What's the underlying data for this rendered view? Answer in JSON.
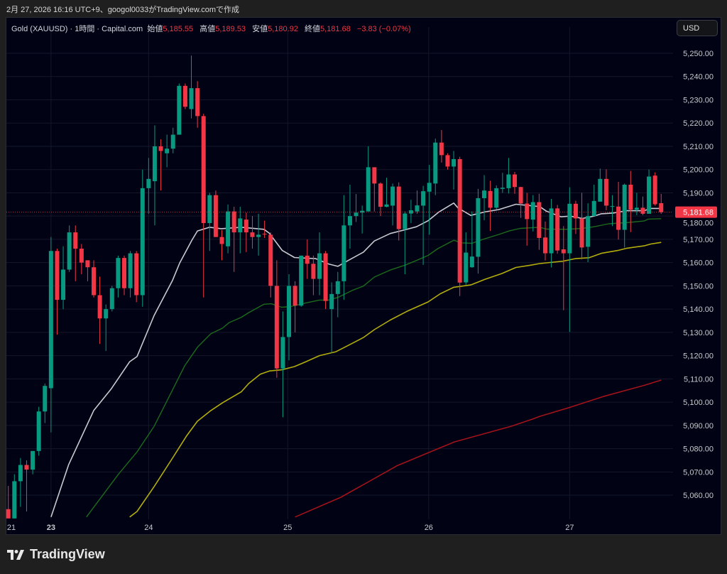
{
  "caption": "2月 27, 2026 16:16 UTC+9、googol0033がTradingView.comで作成",
  "legend": {
    "symbol": "Gold (XAUUSD) · 1時間 · Capital.com",
    "open_label": "始値",
    "open": "5,185.55",
    "high_label": "高値",
    "high": "5,189.53",
    "low_label": "安値",
    "low": "5,180.92",
    "close_label": "終値",
    "close": "5,181.68",
    "change": "−3.83 (−0.07%)"
  },
  "currency_button": "USD",
  "brand": "TradingView",
  "colors": {
    "up": "#089981",
    "down": "#f23645",
    "ma_fast": "#c9c9d1",
    "ma_mid": "#1c6a1c",
    "ma_slow": "#b3ad0c",
    "ma_long": "#a3121a",
    "last_price": "#f23645"
  },
  "chart_data": {
    "type": "candlestick",
    "title": "Gold (XAUUSD) · 1時間 · Capital.com",
    "ylim": [
      5050,
      5250
    ],
    "y_ticks": [
      "5,250.00",
      "5,240.00",
      "5,230.00",
      "5,220.00",
      "5,210.00",
      "5,200.00",
      "5,190.00",
      "5,180.00",
      "5,170.00",
      "5,160.00",
      "5,150.00",
      "5,140.00",
      "5,130.00",
      "5,120.00",
      "5,110.00",
      "5,100.00",
      "5,090.00",
      "5,080.00",
      "5,070.00",
      "5,060.00"
    ],
    "y_tick_values": [
      5250,
      5240,
      5230,
      5220,
      5210,
      5200,
      5190,
      5180,
      5170,
      5160,
      5150,
      5140,
      5130,
      5120,
      5110,
      5100,
      5090,
      5080,
      5070,
      5060
    ],
    "x_labels": [
      {
        "label": "21",
        "index": 0,
        "bold": false
      },
      {
        "label": "23",
        "index": 7,
        "bold": true
      },
      {
        "label": "24",
        "index": 23,
        "bold": false
      },
      {
        "label": "25",
        "index": 45.8,
        "bold": false
      },
      {
        "label": "26",
        "index": 68.9,
        "bold": false
      },
      {
        "label": "27",
        "index": 92,
        "bold": false
      }
    ],
    "last_price": 5181.68,
    "last_price_label": "5,181.68",
    "ohlc": [
      [
        5054,
        5064,
        5050,
        5050
      ],
      [
        5050,
        5069,
        5050,
        5066
      ],
      [
        5066,
        5076,
        5055,
        5073
      ],
      [
        5073,
        5075,
        5053,
        5071
      ],
      [
        5071,
        5079,
        5069,
        5079
      ],
      [
        5079,
        5098,
        5077,
        5096
      ],
      [
        5096,
        5108,
        5091,
        5107
      ],
      [
        5106,
        5171,
        5087,
        5165
      ],
      [
        5165,
        5166,
        5129,
        5144
      ],
      [
        5144,
        5167,
        5140,
        5157
      ],
      [
        5157,
        5176,
        5156,
        5173
      ],
      [
        5173,
        5176,
        5152,
        5166
      ],
      [
        5166,
        5168,
        5155,
        5160
      ],
      [
        5161,
        5161,
        5152,
        5158
      ],
      [
        5158,
        5161,
        5145,
        5146
      ],
      [
        5146,
        5154,
        5125,
        5136
      ],
      [
        5136,
        5142,
        5122,
        5140
      ],
      [
        5140,
        5150,
        5139,
        5149
      ],
      [
        5149,
        5163,
        5145,
        5162
      ],
      [
        5162,
        5163,
        5146,
        5149
      ],
      [
        5149,
        5165,
        5145,
        5164
      ],
      [
        5164,
        5165,
        5143,
        5146
      ],
      [
        5146,
        5200,
        5141,
        5192
      ],
      [
        5192,
        5205,
        5181,
        5196
      ],
      [
        5195,
        5219,
        5176,
        5210
      ],
      [
        5210,
        5213,
        5191,
        5208
      ],
      [
        5207,
        5215,
        5201,
        5209
      ],
      [
        5209,
        5218,
        5207,
        5215
      ],
      [
        5215,
        5237,
        5215,
        5236
      ],
      [
        5236,
        5237,
        5226,
        5227
      ],
      [
        5226,
        5249,
        5222,
        5235
      ],
      [
        5235,
        5238,
        5218,
        5223
      ],
      [
        5223,
        5224,
        5145,
        5177
      ],
      [
        5177,
        5190,
        5165,
        5189
      ],
      [
        5189,
        5191,
        5171,
        5171
      ],
      [
        5171,
        5174,
        5161,
        5168
      ],
      [
        5167,
        5185,
        5164,
        5182
      ],
      [
        5182,
        5184,
        5156,
        5173
      ],
      [
        5173,
        5184,
        5164,
        5179
      ],
      [
        5178.5,
        5181.5,
        5164.5,
        5173
      ],
      [
        5173,
        5180,
        5166,
        5171
      ],
      [
        5171,
        5181,
        5163,
        5172
      ],
      [
        5172.4,
        5178,
        5170.6,
        5172.1
      ],
      [
        5172,
        5173,
        5145,
        5150
      ],
      [
        5150,
        5161,
        5110.5,
        5114.5
      ],
      [
        5114.5,
        5139,
        5093.5,
        5128
      ],
      [
        5128,
        5155,
        5118,
        5150
      ],
      [
        5150,
        5152,
        5130,
        5141.5
      ],
      [
        5141.5,
        5163,
        5141,
        5163
      ],
      [
        5163,
        5170,
        5153,
        5159.5
      ],
      [
        5159.5,
        5163,
        5146,
        5153
      ],
      [
        5153,
        5173,
        5146,
        5164
      ],
      [
        5164,
        5165,
        5140,
        5143.5
      ],
      [
        5140,
        5151.5,
        5121,
        5146.5
      ],
      [
        5146.5,
        5156,
        5136.5,
        5152
      ],
      [
        5152,
        5189,
        5144,
        5176
      ],
      [
        5176,
        5193.5,
        5166,
        5180
      ],
      [
        5180,
        5189.5,
        5177.5,
        5181.5
      ],
      [
        5181.5,
        5184.5,
        5172.5,
        5182.3
      ],
      [
        5182,
        5210,
        5182,
        5201
      ],
      [
        5201,
        5201,
        5182,
        5194
      ],
      [
        5194,
        5194.5,
        5180,
        5184
      ],
      [
        5184,
        5196.5,
        5183.8,
        5185
      ],
      [
        5184.5,
        5194,
        5176,
        5192.7
      ],
      [
        5192.7,
        5194.5,
        5169.5,
        5174.4
      ],
      [
        5174.4,
        5182,
        5155,
        5181.1
      ],
      [
        5181.1,
        5187,
        5177,
        5182.5
      ],
      [
        5182,
        5191,
        5181,
        5184.6
      ],
      [
        5184.5,
        5193,
        5159,
        5190.7
      ],
      [
        5190.5,
        5202,
        5172,
        5194.3
      ],
      [
        5194,
        5213.3,
        5189,
        5211.6
      ],
      [
        5211.6,
        5217,
        5203,
        5206.2
      ],
      [
        5206.2,
        5207,
        5200,
        5201.3
      ],
      [
        5201.3,
        5208,
        5191.4,
        5204.5
      ],
      [
        5204.5,
        5205.5,
        5145.6,
        5151.4
      ],
      [
        5151.5,
        5173,
        5150.5,
        5164.3
      ],
      [
        5158,
        5182,
        5157.8,
        5162.6
      ],
      [
        5162.5,
        5191.7,
        5155.3,
        5187.7
      ],
      [
        5187.7,
        5197.6,
        5178.2,
        5191
      ],
      [
        5190.8,
        5195.2,
        5173.6,
        5183.6
      ],
      [
        5183.6,
        5193.2,
        5182.8,
        5192
      ],
      [
        5191.7,
        5198.6,
        5190,
        5192.2
      ],
      [
        5192,
        5205,
        5189.7,
        5197.9
      ],
      [
        5197.9,
        5199,
        5189.6,
        5192.5
      ],
      [
        5192.5,
        5192.6,
        5179.2,
        5185.4
      ],
      [
        5185.4,
        5190,
        5167.3,
        5178.7
      ],
      [
        5178.5,
        5189,
        5173.4,
        5186
      ],
      [
        5186,
        5189.6,
        5165.5,
        5170.6
      ],
      [
        5170.8,
        5177.7,
        5160.9,
        5164
      ],
      [
        5164,
        5187.4,
        5157.9,
        5183.3
      ],
      [
        5183.3,
        5184.8,
        5163.8,
        5165.2
      ],
      [
        5165.7,
        5175.7,
        5139.5,
        5164
      ],
      [
        5164,
        5192.4,
        5130.2,
        5185.3
      ],
      [
        5185.3,
        5186.6,
        5172.3,
        5179
      ],
      [
        5179,
        5190,
        5161.4,
        5166.5
      ],
      [
        5166.8,
        5185.5,
        5160.2,
        5180
      ],
      [
        5180,
        5193.5,
        5180,
        5186.5
      ],
      [
        5186.2,
        5200.4,
        5186.2,
        5196
      ],
      [
        5196,
        5200.1,
        5182.5,
        5184.5
      ],
      [
        5184.1,
        5189,
        5175.7,
        5184.3
      ],
      [
        5184.1,
        5194.7,
        5169.9,
        5174.1
      ],
      [
        5174.1,
        5194,
        5166.5,
        5193.5
      ],
      [
        5193.5,
        5199.4,
        5173.1,
        5182.8
      ],
      [
        5182.8,
        5190,
        5180.4,
        5183.6
      ],
      [
        5183.6,
        5188.4,
        5180.4,
        5181
      ],
      [
        5181,
        5200,
        5181,
        5197
      ],
      [
        5197.4,
        5198.8,
        5184.5,
        5185.1
      ],
      [
        5185.55,
        5189.53,
        5180.92,
        5181.68
      ]
    ],
    "moving_averages": [
      {
        "name": "ma_fast",
        "points": [
          [
            7,
            5050.6
          ],
          [
            9.9,
            5073.2
          ],
          [
            14,
            5096.4
          ],
          [
            16.9,
            5105.8
          ],
          [
            19.9,
            5117.4
          ],
          [
            21.1,
            5119.6
          ],
          [
            23.9,
            5137.3
          ],
          [
            26.9,
            5152.3
          ],
          [
            28.1,
            5159.9
          ],
          [
            30.1,
            5169.7
          ],
          [
            31,
            5173.6
          ],
          [
            33,
            5175.2
          ],
          [
            34.9,
            5174.6
          ],
          [
            38.2,
            5175.2
          ],
          [
            41.9,
            5174.3
          ],
          [
            42.8,
            5172.6
          ],
          [
            44.9,
            5165.2
          ],
          [
            46.9,
            5162.2
          ],
          [
            50.4,
            5161.7
          ],
          [
            52.5,
            5159.4
          ],
          [
            54,
            5158.4
          ],
          [
            55.7,
            5160.9
          ],
          [
            58.2,
            5164.5
          ],
          [
            60,
            5169.3
          ],
          [
            62.6,
            5172.5
          ],
          [
            65,
            5174.1
          ],
          [
            66.9,
            5175.4
          ],
          [
            68.8,
            5178
          ],
          [
            70.6,
            5181.8
          ],
          [
            73,
            5185.6
          ],
          [
            73.7,
            5183.5
          ],
          [
            75.8,
            5180.3
          ],
          [
            78.1,
            5181.8
          ],
          [
            80.4,
            5182.8
          ],
          [
            83.2,
            5185.1
          ],
          [
            87.1,
            5184.1
          ],
          [
            88.2,
            5182.1
          ],
          [
            90.6,
            5179.7
          ],
          [
            92.1,
            5180
          ],
          [
            94.1,
            5179
          ],
          [
            96,
            5180
          ],
          [
            97.2,
            5181
          ],
          [
            99.1,
            5181.3
          ],
          [
            101.4,
            5182.3
          ],
          [
            104.2,
            5182.3
          ],
          [
            105.3,
            5183.3
          ],
          [
            107,
            5183.3
          ]
        ]
      },
      {
        "name": "ma_mid",
        "points": [
          [
            12.8,
            5050.6
          ],
          [
            14,
            5054.8
          ],
          [
            18.1,
            5069.2
          ],
          [
            21.1,
            5078.6
          ],
          [
            23.9,
            5089.6
          ],
          [
            26.9,
            5105.2
          ],
          [
            28.9,
            5115.6
          ],
          [
            31,
            5123.6
          ],
          [
            33.2,
            5129.4
          ],
          [
            35.1,
            5131.8
          ],
          [
            36.2,
            5134.2
          ],
          [
            38.2,
            5136.5
          ],
          [
            39.4,
            5138.5
          ],
          [
            41.9,
            5142.1
          ],
          [
            43.1,
            5142.3
          ],
          [
            44.8,
            5140.8
          ],
          [
            46.3,
            5141.1
          ],
          [
            48.7,
            5142.6
          ],
          [
            51,
            5143.9
          ],
          [
            52.5,
            5143.9
          ],
          [
            54.1,
            5145.1
          ],
          [
            56.5,
            5148.2
          ],
          [
            58.2,
            5149.9
          ],
          [
            60,
            5153.8
          ],
          [
            62.6,
            5156.8
          ],
          [
            65,
            5158.9
          ],
          [
            66.9,
            5160.9
          ],
          [
            68.8,
            5163.1
          ],
          [
            70.4,
            5166
          ],
          [
            73,
            5169.6
          ],
          [
            74.3,
            5168.5
          ],
          [
            76,
            5168.3
          ],
          [
            77.8,
            5170
          ],
          [
            80.4,
            5172.1
          ],
          [
            82.1,
            5173.6
          ],
          [
            83.9,
            5174.7
          ],
          [
            87.1,
            5175.2
          ],
          [
            88.2,
            5174.4
          ],
          [
            91.4,
            5174.3
          ],
          [
            94.1,
            5174.7
          ],
          [
            96,
            5175.4
          ],
          [
            98.4,
            5176.7
          ],
          [
            101.4,
            5177.2
          ],
          [
            104.2,
            5177.9
          ],
          [
            104.9,
            5178.7
          ],
          [
            107,
            5178.9
          ]
        ]
      },
      {
        "name": "ma_slow",
        "points": [
          [
            19.9,
            5050.6
          ],
          [
            21.1,
            5053
          ],
          [
            23.9,
            5063.7
          ],
          [
            26.9,
            5075.9
          ],
          [
            29.2,
            5085.4
          ],
          [
            31,
            5091.8
          ],
          [
            33.2,
            5096.4
          ],
          [
            35.1,
            5099.7
          ],
          [
            38.2,
            5104.5
          ],
          [
            39.4,
            5108
          ],
          [
            41.3,
            5112
          ],
          [
            42.8,
            5113.4
          ],
          [
            44.8,
            5113.9
          ],
          [
            46.9,
            5115.3
          ],
          [
            48.7,
            5117.3
          ],
          [
            51,
            5120
          ],
          [
            53.7,
            5121.7
          ],
          [
            56,
            5124.8
          ],
          [
            58.2,
            5127.8
          ],
          [
            60,
            5131.2
          ],
          [
            62.6,
            5135.3
          ],
          [
            65.3,
            5139
          ],
          [
            68.8,
            5143.1
          ],
          [
            70.8,
            5146.6
          ],
          [
            73,
            5149.4
          ],
          [
            75.8,
            5150.4
          ],
          [
            78.1,
            5152.8
          ],
          [
            80.9,
            5155.3
          ],
          [
            83.2,
            5157.9
          ],
          [
            85.6,
            5158.9
          ],
          [
            87.1,
            5159.6
          ],
          [
            88.2,
            5159.9
          ],
          [
            90.9,
            5160.6
          ],
          [
            92.9,
            5161.7
          ],
          [
            95.2,
            5162.1
          ],
          [
            97.2,
            5164
          ],
          [
            99.9,
            5165.2
          ],
          [
            101.4,
            5166.2
          ],
          [
            104.2,
            5167.2
          ],
          [
            105.3,
            5168
          ],
          [
            107,
            5168.7
          ]
        ]
      },
      {
        "name": "ma_long",
        "points": [
          [
            47,
            5050.6
          ],
          [
            54.5,
            5059.1
          ],
          [
            63.8,
            5072.8
          ],
          [
            73.1,
            5082.9
          ],
          [
            82.4,
            5089.6
          ],
          [
            85.9,
            5092.7
          ],
          [
            87.1,
            5093.9
          ],
          [
            92.1,
            5097.8
          ],
          [
            97.5,
            5102.4
          ],
          [
            104.2,
            5107.2
          ],
          [
            107,
            5109.5
          ]
        ]
      }
    ]
  }
}
